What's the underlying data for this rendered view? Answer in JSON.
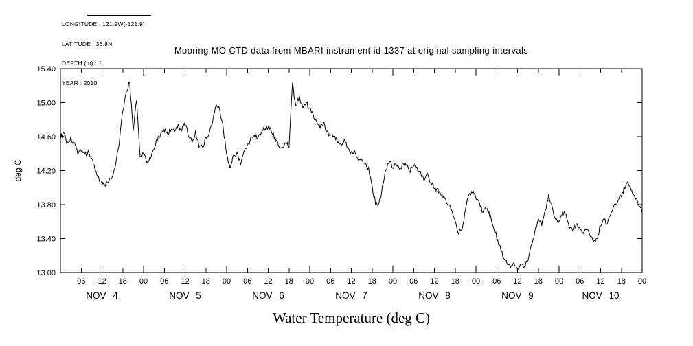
{
  "page": {
    "background": "#ffffff",
    "line_color": "#000000"
  },
  "metadata_block": {
    "lines": [
      "LONGITUDE : 121.9W(-121.9)",
      "LATITUDE : 36.8N",
      "DEPTH (m) : 1",
      "YEAR : 2010"
    ]
  },
  "title": "Mooring MO CTD data from MBARI instrument id 1337 at original sampling intervals",
  "bottom_label": "Water Temperature (deg C)",
  "chart_data": {
    "type": "line",
    "title": "Mooring MO CTD data from MBARI instrument id 1337 at original sampling intervals",
    "xlabel": "Water Temperature (deg C)",
    "ylabel": "deg C",
    "grid": false,
    "legend_position": "none",
    "line_color": "#000000",
    "xlim_hours": [
      0,
      168
    ],
    "ylim": [
      13.0,
      15.4
    ],
    "yticks": [
      13.0,
      13.4,
      13.8,
      14.2,
      14.6,
      15.0,
      15.4
    ],
    "ytick_labels": [
      "13.00",
      "13.40",
      "13.80",
      "14.20",
      "14.60",
      "15.00",
      "15.40"
    ],
    "hour_tick_labels": [
      "06",
      "12",
      "18",
      "00"
    ],
    "hour_tick_step": 6,
    "day_labels": [
      "NOV 4",
      "NOV 5",
      "NOV 6",
      "NOV 7",
      "NOV 8",
      "NOV 9",
      "NOV 10"
    ],
    "series": [
      {
        "name": "water_temperature_degC",
        "x_start_hour": 0,
        "x_step_hours": 1,
        "values": [
          14.6,
          14.63,
          14.52,
          14.58,
          14.5,
          14.42,
          14.45,
          14.38,
          14.42,
          14.36,
          14.2,
          14.1,
          14.06,
          14.04,
          14.08,
          14.12,
          14.3,
          14.55,
          14.9,
          15.1,
          15.25,
          14.65,
          15.05,
          14.35,
          14.42,
          14.28,
          14.35,
          14.45,
          14.58,
          14.62,
          14.68,
          14.63,
          14.7,
          14.65,
          14.72,
          14.68,
          14.75,
          14.62,
          14.55,
          14.65,
          14.5,
          14.48,
          14.58,
          14.65,
          14.78,
          15.0,
          14.92,
          14.7,
          14.4,
          14.22,
          14.38,
          14.42,
          14.28,
          14.4,
          14.5,
          14.58,
          14.62,
          14.6,
          14.66,
          14.7,
          14.72,
          14.66,
          14.58,
          14.5,
          14.45,
          14.52,
          14.48,
          15.22,
          14.95,
          15.08,
          14.92,
          15.0,
          14.92,
          14.85,
          14.78,
          14.72,
          14.75,
          14.65,
          14.6,
          14.62,
          14.55,
          14.5,
          14.55,
          14.48,
          14.4,
          14.42,
          14.35,
          14.32,
          14.28,
          14.22,
          14.0,
          13.82,
          13.8,
          14.0,
          14.22,
          14.3,
          14.25,
          14.28,
          14.2,
          14.3,
          14.25,
          14.2,
          14.26,
          14.22,
          14.16,
          14.1,
          14.14,
          14.06,
          14.0,
          13.96,
          13.92,
          13.86,
          13.82,
          13.76,
          13.58,
          13.48,
          13.52,
          13.75,
          13.92,
          13.95,
          13.88,
          13.8,
          13.72,
          13.76,
          13.68,
          13.55,
          13.42,
          13.3,
          13.18,
          13.1,
          13.06,
          13.1,
          13.05,
          13.12,
          13.06,
          13.15,
          13.32,
          13.48,
          13.62,
          13.58,
          13.72,
          13.9,
          13.75,
          13.62,
          13.58,
          13.72,
          13.66,
          13.55,
          13.5,
          13.56,
          13.52,
          13.48,
          13.52,
          13.44,
          13.36,
          13.42,
          13.55,
          13.62,
          13.58,
          13.68,
          13.78,
          13.85,
          13.92,
          14.0,
          14.05,
          13.96,
          13.88,
          13.8,
          13.7
        ]
      }
    ],
    "appearance": {
      "noise_amplitude": 0.03,
      "samples_per_hour": 4
    }
  }
}
